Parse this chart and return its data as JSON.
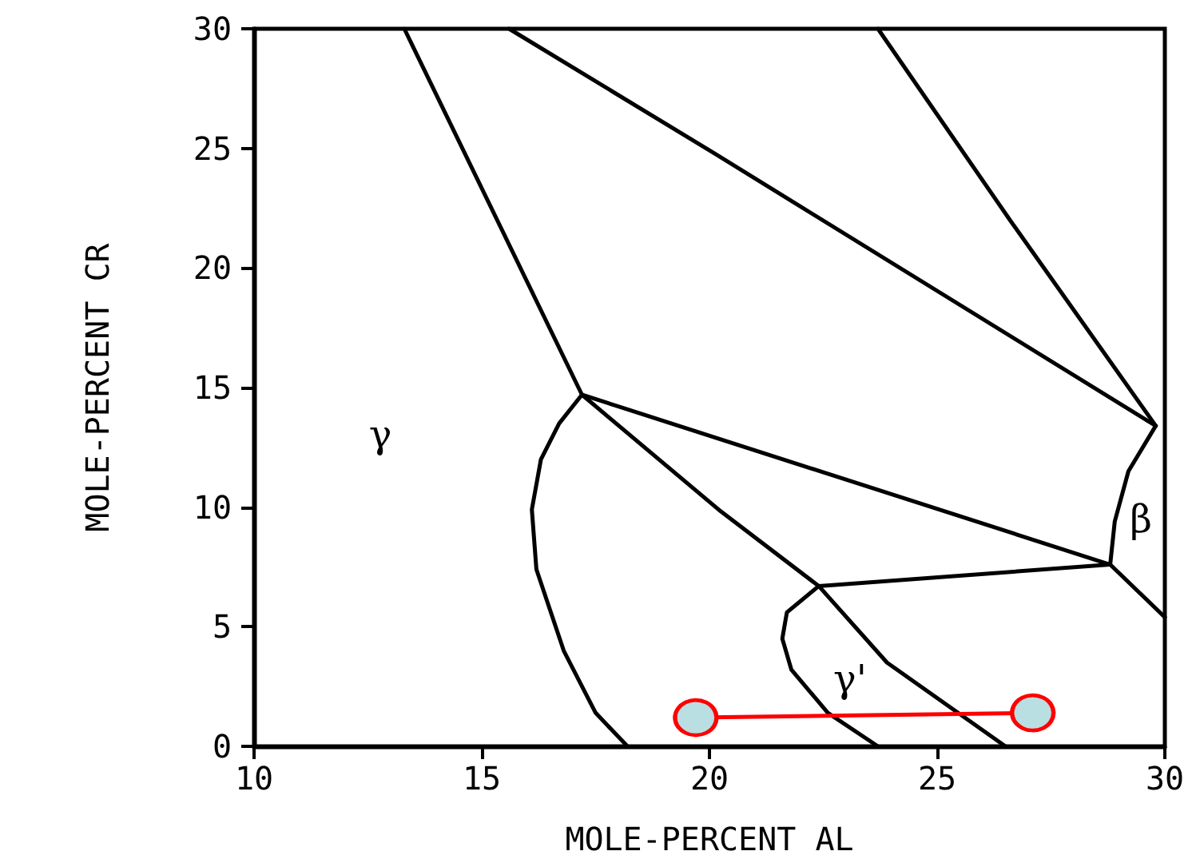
{
  "chart_data": {
    "type": "line",
    "xlabel": "MOLE-PERCENT AL",
    "ylabel": "MOLE-PERCENT CR",
    "xlim": [
      10,
      30
    ],
    "xticks": [
      10,
      15,
      20,
      25,
      30
    ],
    "ylim": [
      0,
      30
    ],
    "yticks": [
      0,
      5,
      10,
      15,
      20,
      25,
      30
    ],
    "grid": false,
    "marker": "none",
    "line_style": "solid",
    "series": [
      {
        "color": "#000000",
        "x": [
          13.3,
          17.2,
          20.2,
          22.4,
          23.9,
          26.5
        ],
        "values": [
          30,
          14.7,
          9.9,
          6.7,
          3.5,
          0
        ]
      },
      {
        "color": "#000000",
        "x": [
          15.6,
          20.1,
          29.8
        ],
        "values": [
          30,
          24.8,
          13.4
        ]
      },
      {
        "color": "#000000",
        "x": [
          23.7,
          26.6,
          29.8
        ],
        "values": [
          30,
          22,
          13.4
        ]
      },
      {
        "color": "#000000",
        "x": [
          17.2,
          28.8
        ],
        "values": [
          14.7,
          7.6
        ]
      },
      {
        "color": "#000000",
        "x": [
          29.8,
          29.2,
          28.9,
          28.8
        ],
        "values": [
          13.4,
          11.5,
          9.4,
          7.6
        ]
      },
      {
        "color": "#000000",
        "x": [
          28.8,
          30
        ],
        "values": [
          7.6,
          5.4
        ]
      },
      {
        "color": "#000000",
        "x": [
          22.4,
          28.8
        ],
        "values": [
          6.7,
          7.6
        ]
      },
      {
        "color": "#000000",
        "x": [
          22.4,
          21.7,
          21.6,
          21.8,
          22.6,
          23.7
        ],
        "values": [
          6.7,
          5.6,
          4.5,
          3.2,
          1.4,
          0
        ]
      },
      {
        "color": "#000000",
        "x": [
          17.2,
          16.7,
          16.3,
          16.1,
          16.2,
          16.8,
          17.5,
          18.2
        ],
        "values": [
          14.7,
          13.5,
          12,
          9.9,
          7.4,
          4,
          1.4,
          0
        ]
      },
      {
        "color": "#ff0000",
        "marker": "circle",
        "x": [
          19.7,
          27.1
        ],
        "values": [
          1.2,
          1.4
        ]
      }
    ],
    "annotations": [
      "γ",
      "β",
      "γ'"
    ]
  }
}
